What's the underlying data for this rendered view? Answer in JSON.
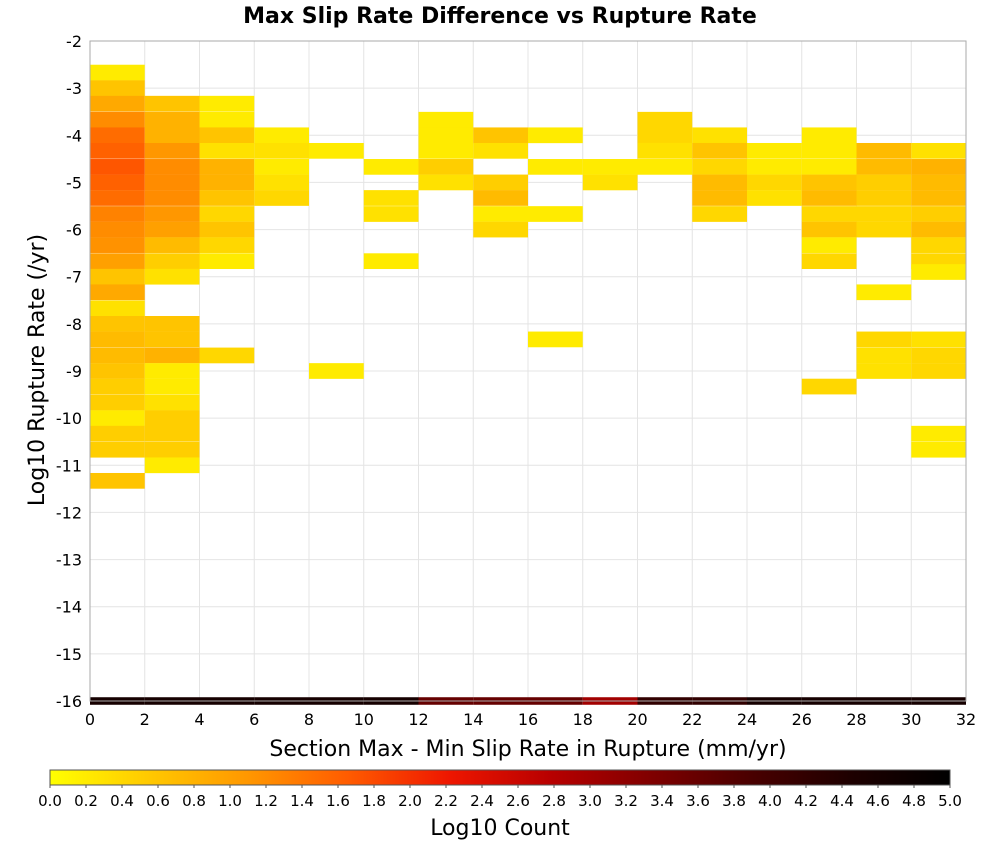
{
  "chart_data": {
    "type": "heatmap",
    "title": "Max Slip Rate Difference vs Rupture Rate",
    "xlabel": "Section Max - Min Slip Rate in Rupture (mm/yr)",
    "ylabel": "Log10 Rupture Rate (/yr)",
    "xlim": [
      0,
      32
    ],
    "ylim": [
      -16,
      -2
    ],
    "x_bin_width": 2,
    "y_bin_height": 0.3333,
    "x_ticks": [
      "0",
      "2",
      "4",
      "6",
      "8",
      "10",
      "12",
      "14",
      "16",
      "18",
      "20",
      "22",
      "24",
      "26",
      "28",
      "30",
      "32"
    ],
    "y_ticks": [
      "-2",
      "-3",
      "-4",
      "-5",
      "-6",
      "-7",
      "-8",
      "-9",
      "-10",
      "-11",
      "-12",
      "-13",
      "-14",
      "-15",
      "-16"
    ],
    "grid": true,
    "colorbar": {
      "label": "Log10 Count",
      "range": [
        0,
        5
      ],
      "ticks": [
        "0.0",
        "0.2",
        "0.4",
        "0.6",
        "0.8",
        "1.0",
        "1.2",
        "1.4",
        "1.6",
        "1.8",
        "2.0",
        "2.2",
        "2.4",
        "2.6",
        "2.8",
        "3.0",
        "3.2",
        "3.4",
        "3.6",
        "3.8",
        "4.0",
        "4.2",
        "4.4",
        "4.6",
        "4.8",
        "5.0"
      ],
      "colors": [
        "#ffff00",
        "#ffc800",
        "#ff9600",
        "#ff5a00",
        "#ee1600",
        "#b80000",
        "#800000",
        "#4a0000",
        "#1e0000",
        "#000000"
      ]
    },
    "cells": [
      {
        "x": 0,
        "y": -2.67,
        "v": 0.2
      },
      {
        "x": 0,
        "y": -3.0,
        "v": 0.6
      },
      {
        "x": 0,
        "y": -3.33,
        "v": 0.9
      },
      {
        "x": 0,
        "y": -3.67,
        "v": 1.2
      },
      {
        "x": 0,
        "y": -4.0,
        "v": 1.5
      },
      {
        "x": 0,
        "y": -4.33,
        "v": 1.6
      },
      {
        "x": 0,
        "y": -4.67,
        "v": 1.7
      },
      {
        "x": 0,
        "y": -5.0,
        "v": 1.6
      },
      {
        "x": 0,
        "y": -5.33,
        "v": 1.5
      },
      {
        "x": 0,
        "y": -5.67,
        "v": 1.3
      },
      {
        "x": 0,
        "y": -6.0,
        "v": 1.2
      },
      {
        "x": 0,
        "y": -6.33,
        "v": 1.15
      },
      {
        "x": 0,
        "y": -6.67,
        "v": 1.0
      },
      {
        "x": 0,
        "y": -7.0,
        "v": 0.6
      },
      {
        "x": 0,
        "y": -7.33,
        "v": 0.9
      },
      {
        "x": 0,
        "y": -7.67,
        "v": 0.3
      },
      {
        "x": 0,
        "y": -8.0,
        "v": 0.6
      },
      {
        "x": 0,
        "y": -8.33,
        "v": 0.7
      },
      {
        "x": 0,
        "y": -8.67,
        "v": 0.7
      },
      {
        "x": 0,
        "y": -9.0,
        "v": 0.6
      },
      {
        "x": 0,
        "y": -9.33,
        "v": 0.5
      },
      {
        "x": 0,
        "y": -9.67,
        "v": 0.5
      },
      {
        "x": 0,
        "y": -10.0,
        "v": 0.2
      },
      {
        "x": 0,
        "y": -10.33,
        "v": 0.5
      },
      {
        "x": 0,
        "y": -10.67,
        "v": 0.5
      },
      {
        "x": 0,
        "y": -11.33,
        "v": 0.6
      },
      {
        "x": 2,
        "y": -3.33,
        "v": 0.6
      },
      {
        "x": 2,
        "y": -3.67,
        "v": 0.8
      },
      {
        "x": 2,
        "y": -4.0,
        "v": 0.8
      },
      {
        "x": 2,
        "y": -4.33,
        "v": 1.1
      },
      {
        "x": 2,
        "y": -4.67,
        "v": 1.2
      },
      {
        "x": 2,
        "y": -5.0,
        "v": 1.2
      },
      {
        "x": 2,
        "y": -5.33,
        "v": 1.2
      },
      {
        "x": 2,
        "y": -5.67,
        "v": 1.1
      },
      {
        "x": 2,
        "y": -6.0,
        "v": 1.0
      },
      {
        "x": 2,
        "y": -6.33,
        "v": 0.7
      },
      {
        "x": 2,
        "y": -6.67,
        "v": 0.5
      },
      {
        "x": 2,
        "y": -7.0,
        "v": 0.3
      },
      {
        "x": 2,
        "y": -8.0,
        "v": 0.6
      },
      {
        "x": 2,
        "y": -8.33,
        "v": 0.6
      },
      {
        "x": 2,
        "y": -8.67,
        "v": 0.8
      },
      {
        "x": 2,
        "y": -9.0,
        "v": 0.2
      },
      {
        "x": 2,
        "y": -9.33,
        "v": 0.2
      },
      {
        "x": 2,
        "y": -9.67,
        "v": 0.3
      },
      {
        "x": 2,
        "y": -10.0,
        "v": 0.5
      },
      {
        "x": 2,
        "y": -10.33,
        "v": 0.5
      },
      {
        "x": 2,
        "y": -10.67,
        "v": 0.5
      },
      {
        "x": 2,
        "y": -11.0,
        "v": 0.2
      },
      {
        "x": 4,
        "y": -3.33,
        "v": 0.2
      },
      {
        "x": 4,
        "y": -3.67,
        "v": 0.2
      },
      {
        "x": 4,
        "y": -4.0,
        "v": 0.6
      },
      {
        "x": 4,
        "y": -4.33,
        "v": 0.3
      },
      {
        "x": 4,
        "y": -4.67,
        "v": 0.8
      },
      {
        "x": 4,
        "y": -5.0,
        "v": 0.8
      },
      {
        "x": 4,
        "y": -5.33,
        "v": 0.6
      },
      {
        "x": 4,
        "y": -5.67,
        "v": 0.4
      },
      {
        "x": 4,
        "y": -6.0,
        "v": 0.6
      },
      {
        "x": 4,
        "y": -6.33,
        "v": 0.4
      },
      {
        "x": 4,
        "y": -6.67,
        "v": 0.2
      },
      {
        "x": 4,
        "y": -8.67,
        "v": 0.4
      },
      {
        "x": 6,
        "y": -4.0,
        "v": 0.2
      },
      {
        "x": 6,
        "y": -4.33,
        "v": 0.3
      },
      {
        "x": 6,
        "y": -4.67,
        "v": 0.2
      },
      {
        "x": 6,
        "y": -5.0,
        "v": 0.3
      },
      {
        "x": 6,
        "y": -5.33,
        "v": 0.4
      },
      {
        "x": 8,
        "y": -4.33,
        "v": 0.2
      },
      {
        "x": 8,
        "y": -9.0,
        "v": 0.2
      },
      {
        "x": 10,
        "y": -4.67,
        "v": 0.2
      },
      {
        "x": 10,
        "y": -5.33,
        "v": 0.3
      },
      {
        "x": 10,
        "y": -5.67,
        "v": 0.3
      },
      {
        "x": 10,
        "y": -6.67,
        "v": 0.2
      },
      {
        "x": 12,
        "y": -3.67,
        "v": 0.2
      },
      {
        "x": 12,
        "y": -4.0,
        "v": 0.2
      },
      {
        "x": 12,
        "y": -4.33,
        "v": 0.2
      },
      {
        "x": 12,
        "y": -4.67,
        "v": 0.5
      },
      {
        "x": 12,
        "y": -5.0,
        "v": 0.3
      },
      {
        "x": 14,
        "y": -4.0,
        "v": 0.6
      },
      {
        "x": 14,
        "y": -4.33,
        "v": 0.3
      },
      {
        "x": 14,
        "y": -5.0,
        "v": 0.5
      },
      {
        "x": 14,
        "y": -5.33,
        "v": 0.7
      },
      {
        "x": 14,
        "y": -5.67,
        "v": 0.2
      },
      {
        "x": 14,
        "y": -6.0,
        "v": 0.4
      },
      {
        "x": 16,
        "y": -4.0,
        "v": 0.2
      },
      {
        "x": 16,
        "y": -4.67,
        "v": 0.2
      },
      {
        "x": 16,
        "y": -5.67,
        "v": 0.2
      },
      {
        "x": 16,
        "y": -8.33,
        "v": 0.2
      },
      {
        "x": 18,
        "y": -4.67,
        "v": 0.2
      },
      {
        "x": 18,
        "y": -5.0,
        "v": 0.3
      },
      {
        "x": 20,
        "y": -3.67,
        "v": 0.4
      },
      {
        "x": 20,
        "y": -4.0,
        "v": 0.4
      },
      {
        "x": 20,
        "y": -4.33,
        "v": 0.3
      },
      {
        "x": 20,
        "y": -4.67,
        "v": 0.2
      },
      {
        "x": 22,
        "y": -4.0,
        "v": 0.3
      },
      {
        "x": 22,
        "y": -4.33,
        "v": 0.6
      },
      {
        "x": 22,
        "y": -4.67,
        "v": 0.4
      },
      {
        "x": 22,
        "y": -5.0,
        "v": 0.7
      },
      {
        "x": 22,
        "y": -5.33,
        "v": 0.7
      },
      {
        "x": 22,
        "y": -5.67,
        "v": 0.4
      },
      {
        "x": 24,
        "y": -4.33,
        "v": 0.2
      },
      {
        "x": 24,
        "y": -4.67,
        "v": 0.2
      },
      {
        "x": 24,
        "y": -5.0,
        "v": 0.4
      },
      {
        "x": 24,
        "y": -5.33,
        "v": 0.3
      },
      {
        "x": 26,
        "y": -4.0,
        "v": 0.2
      },
      {
        "x": 26,
        "y": -4.33,
        "v": 0.2
      },
      {
        "x": 26,
        "y": -4.67,
        "v": 0.2
      },
      {
        "x": 26,
        "y": -5.0,
        "v": 0.6
      },
      {
        "x": 26,
        "y": -5.33,
        "v": 0.7
      },
      {
        "x": 26,
        "y": -5.67,
        "v": 0.4
      },
      {
        "x": 26,
        "y": -6.0,
        "v": 0.6
      },
      {
        "x": 26,
        "y": -6.33,
        "v": 0.2
      },
      {
        "x": 26,
        "y": -6.67,
        "v": 0.4
      },
      {
        "x": 26,
        "y": -9.33,
        "v": 0.4
      },
      {
        "x": 28,
        "y": -4.33,
        "v": 0.7
      },
      {
        "x": 28,
        "y": -4.67,
        "v": 0.7
      },
      {
        "x": 28,
        "y": -5.0,
        "v": 0.5
      },
      {
        "x": 28,
        "y": -5.33,
        "v": 0.5
      },
      {
        "x": 28,
        "y": -5.67,
        "v": 0.4
      },
      {
        "x": 28,
        "y": -6.0,
        "v": 0.4
      },
      {
        "x": 28,
        "y": -7.33,
        "v": 0.2
      },
      {
        "x": 28,
        "y": -8.33,
        "v": 0.4
      },
      {
        "x": 28,
        "y": -8.67,
        "v": 0.3
      },
      {
        "x": 28,
        "y": -9.0,
        "v": 0.3
      },
      {
        "x": 30,
        "y": -4.33,
        "v": 0.3
      },
      {
        "x": 30,
        "y": -4.67,
        "v": 0.8
      },
      {
        "x": 30,
        "y": -5.0,
        "v": 0.7
      },
      {
        "x": 30,
        "y": -5.33,
        "v": 0.7
      },
      {
        "x": 30,
        "y": -5.67,
        "v": 0.5
      },
      {
        "x": 30,
        "y": -6.0,
        "v": 0.7
      },
      {
        "x": 30,
        "y": -6.33,
        "v": 0.4
      },
      {
        "x": 30,
        "y": -6.67,
        "v": 0.4
      },
      {
        "x": 30,
        "y": -6.9,
        "v": 0.2
      },
      {
        "x": 30,
        "y": -8.33,
        "v": 0.3
      },
      {
        "x": 30,
        "y": -8.67,
        "v": 0.4
      },
      {
        "x": 30,
        "y": -9.0,
        "v": 0.4
      },
      {
        "x": 30,
        "y": -10.33,
        "v": 0.2
      },
      {
        "x": 30,
        "y": -10.67,
        "v": 0.2
      }
    ],
    "bottom_row": {
      "y": -16,
      "values": [
        4.6,
        4.6,
        4.6,
        4.6,
        4.6,
        4.6,
        3.6,
        3.6,
        3.6,
        3.0,
        4.2,
        4.2,
        4.6,
        4.6,
        4.6,
        4.6
      ]
    }
  }
}
